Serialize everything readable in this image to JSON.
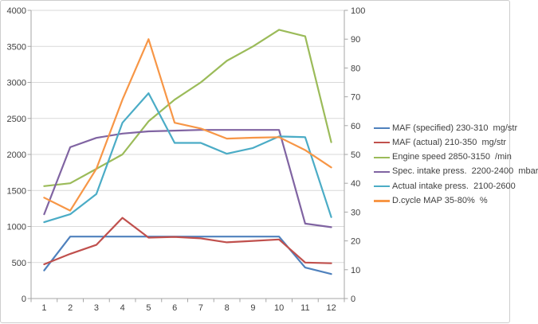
{
  "chart_data": {
    "type": "line",
    "title": "",
    "xlabel": "",
    "ylabel": "",
    "grid": "horizontal",
    "legend_position": "right",
    "x": {
      "categories": [
        "1",
        "2",
        "3",
        "4",
        "5",
        "6",
        "7",
        "8",
        "9",
        "10",
        "11",
        "12"
      ]
    },
    "axes": {
      "left": {
        "min": 0,
        "max": 4000,
        "step": 500,
        "ticks": [
          "0",
          "500",
          "1000",
          "1500",
          "2000",
          "2500",
          "3000",
          "3500",
          "4000"
        ]
      },
      "right": {
        "min": 0,
        "max": 100,
        "step": 10,
        "ticks": [
          "0",
          "10",
          "20",
          "30",
          "40",
          "50",
          "60",
          "70",
          "80",
          "90",
          "100"
        ]
      }
    },
    "series": [
      {
        "name": "MAF (specified) 230-310  mg/str",
        "color": "#4F81BD",
        "axis": "left",
        "values": [
          390,
          860,
          860,
          860,
          860,
          860,
          860,
          860,
          860,
          860,
          430,
          340
        ]
      },
      {
        "name": "MAF (actual) 210-350  mg/str",
        "color": "#C0504D",
        "axis": "left",
        "values": [
          475,
          620,
          745,
          1120,
          845,
          855,
          835,
          780,
          800,
          820,
          500,
          490
        ]
      },
      {
        "name": "Engine speed 2850-3150  /min",
        "color": "#9BBB59",
        "axis": "left",
        "values": [
          1560,
          1600,
          1800,
          2000,
          2460,
          2760,
          3000,
          3300,
          3500,
          3730,
          3640,
          2170
        ]
      },
      {
        "name": "Spec. intake press.  2200-2400  mbar",
        "color": "#8064A2",
        "axis": "left",
        "values": [
          1170,
          2100,
          2230,
          2290,
          2320,
          2330,
          2340,
          2340,
          2340,
          2340,
          1040,
          990
        ]
      },
      {
        "name": "Actual intake press.  2100-2600",
        "color": "#4BACC6",
        "axis": "left",
        "values": [
          1060,
          1170,
          1450,
          2440,
          2850,
          2160,
          2160,
          2010,
          2090,
          2250,
          2240,
          1130
        ]
      },
      {
        "name": "D.cycle MAP 35-80%  %",
        "color": "#F79646",
        "axis": "right",
        "values": [
          35,
          30.5,
          45,
          69,
          90,
          61,
          59,
          55.5,
          55.8,
          56,
          51.5,
          45.5
        ]
      }
    ],
    "colors": {
      "gridline": "#d9d9d9",
      "axis_line": "#a6a6a6",
      "tick_label": "#404040",
      "background": "#ffffff",
      "border": "#cdcdcd"
    }
  }
}
